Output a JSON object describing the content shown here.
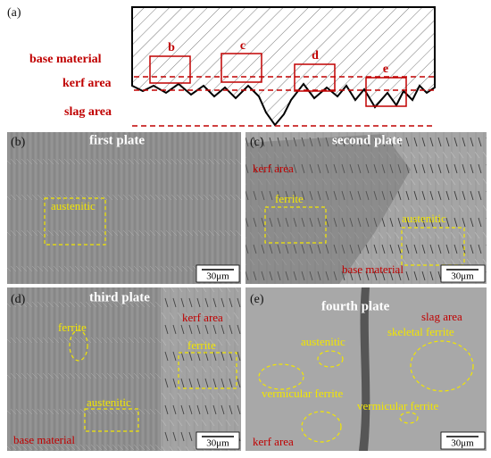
{
  "panel_a": {
    "label": "(a)",
    "box_labels": [
      "b",
      "c",
      "d",
      "e"
    ],
    "zones": [
      "base material",
      "kerf area",
      "slag area"
    ]
  },
  "panels": [
    {
      "label": "(b)",
      "title": "first plate",
      "annotations": [
        "austenitic"
      ],
      "scale_bar": "30μm"
    },
    {
      "label": "(c)",
      "title": "second plate",
      "annotations": [
        "kerf area",
        "ferrite",
        "austenitic",
        "base material"
      ],
      "scale_bar": "30μm"
    },
    {
      "label": "(d)",
      "title": "third plate",
      "annotations": [
        "kerf area",
        "ferrite",
        "ferrite",
        "austenitic",
        "base material"
      ],
      "scale_bar": "30μm"
    },
    {
      "label": "(e)",
      "title": "fourth plate",
      "annotations": [
        "slag area",
        "skeletal ferrite",
        "austenitic",
        "vermicular ferrite",
        "vermicular ferrite",
        "kerf area"
      ],
      "scale_bar": "30μm"
    }
  ]
}
